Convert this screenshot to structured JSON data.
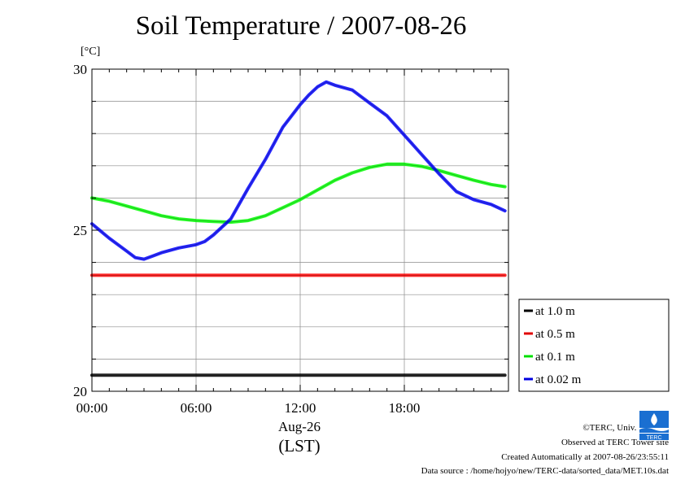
{
  "chart_data": {
    "type": "line",
    "title": "Soil Temperature / 2007-08-26",
    "ylabel": "[°C]",
    "xlabel": "Aug-26",
    "xlabel2": "(LST)",
    "ylim": [
      20,
      30
    ],
    "xlim_hours": [
      0,
      24
    ],
    "yticks": [
      20,
      25,
      30
    ],
    "xticks": [
      {
        "h": 0,
        "label": "00:00"
      },
      {
        "h": 6,
        "label": "06:00"
      },
      {
        "h": 12,
        "label": "12:00"
      },
      {
        "h": 18,
        "label": "18:00"
      }
    ],
    "grid": true,
    "legend_position": "right",
    "series": [
      {
        "name": "at 1.0 m",
        "color": "#000000",
        "x": [
          0,
          6,
          12,
          18,
          23.8
        ],
        "y": [
          20.5,
          20.5,
          20.5,
          20.5,
          20.5
        ]
      },
      {
        "name": "at 0.5 m",
        "color": "#ff0000",
        "x": [
          0,
          6,
          12,
          18,
          23.8
        ],
        "y": [
          23.6,
          23.6,
          23.6,
          23.6,
          23.6
        ]
      },
      {
        "name": "at 0.1 m",
        "color": "#00ff00",
        "x": [
          0,
          1,
          2,
          3,
          4,
          5,
          6,
          7,
          8,
          9,
          10,
          11,
          12,
          13,
          14,
          15,
          16,
          17,
          18,
          19,
          20,
          21,
          22,
          23,
          23.8
        ],
        "y": [
          26.0,
          25.9,
          25.75,
          25.6,
          25.45,
          25.35,
          25.3,
          25.27,
          25.25,
          25.3,
          25.45,
          25.7,
          25.95,
          26.25,
          26.55,
          26.78,
          26.95,
          27.05,
          27.05,
          26.98,
          26.85,
          26.7,
          26.55,
          26.42,
          26.35
        ]
      },
      {
        "name": "at 0.02 m",
        "color": "#0000ff",
        "x": [
          0,
          1,
          2,
          2.5,
          3,
          3.5,
          4,
          5,
          6,
          6.5,
          7,
          8,
          9,
          10,
          11,
          12,
          12.5,
          13,
          13.5,
          14,
          15,
          16,
          17,
          18,
          19,
          20,
          21,
          22,
          23,
          23.8
        ],
        "y": [
          25.2,
          24.75,
          24.35,
          24.15,
          24.1,
          24.2,
          24.3,
          24.45,
          24.55,
          24.65,
          24.85,
          25.35,
          26.3,
          27.2,
          28.2,
          28.9,
          29.2,
          29.45,
          29.6,
          29.5,
          29.35,
          28.95,
          28.55,
          27.95,
          27.35,
          26.75,
          26.2,
          25.95,
          25.8,
          25.6
        ]
      }
    ]
  },
  "credits": {
    "copyright": "©TERC, Univ. Tsukuba",
    "observed": "Observed at TERC Tower site",
    "created": "Created Automatically at 2007-08-26/23:55:11",
    "source": "Data source : /home/hojyo/new/TERC-data/sorted_data/MET.10s.dat"
  },
  "logo_text": "TERC"
}
